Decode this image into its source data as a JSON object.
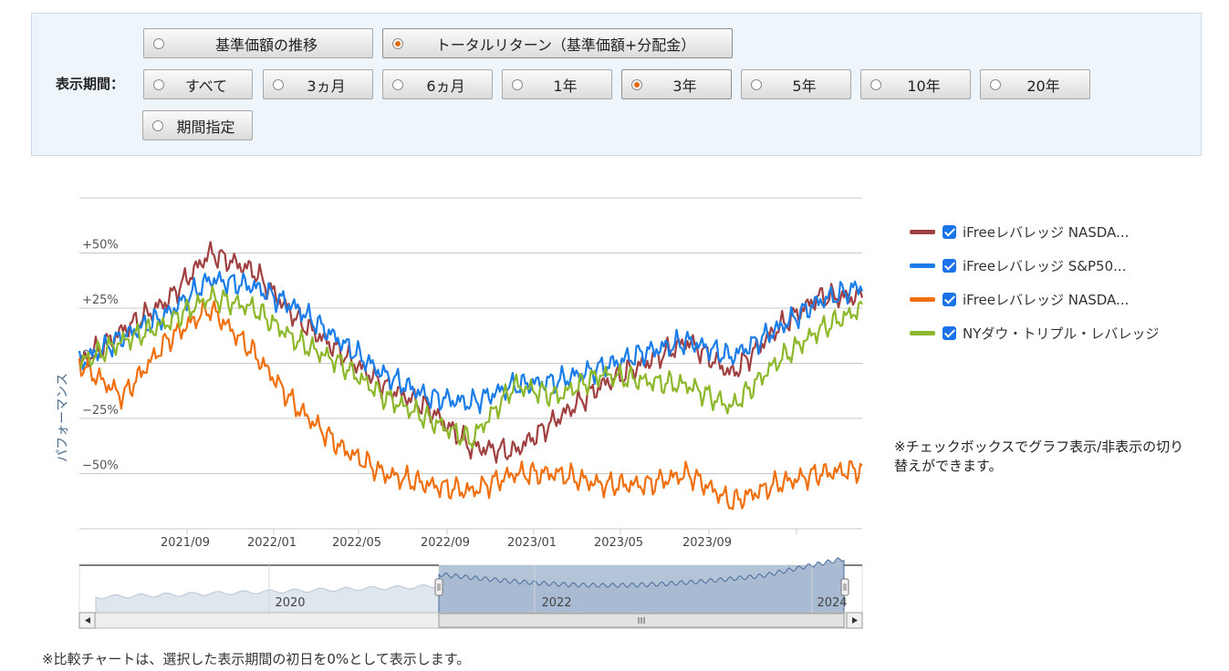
{
  "period_selector": {
    "label": "表示期間：",
    "options": [
      {
        "label": "基準価額の推移",
        "selected": false
      },
      {
        "label": "トータルリターン（基準価額+分配金）",
        "selected": true
      },
      {
        "label": "すべて",
        "selected": false
      },
      {
        "label": "3ヵ月",
        "selected": false
      },
      {
        "label": "6ヵ月",
        "selected": false
      },
      {
        "label": "1年",
        "selected": false
      },
      {
        "label": "3年",
        "selected": true
      },
      {
        "label": "5年",
        "selected": false
      },
      {
        "label": "10年",
        "selected": false
      },
      {
        "label": "20年",
        "selected": false
      },
      {
        "label": "期間指定",
        "selected": false
      }
    ]
  },
  "legend": [
    {
      "label": "iFreeレバレッジ NASDA...",
      "color": "#a04040",
      "checked": true
    },
    {
      "label": "iFreeレバレッジ S&P50...",
      "color": "#1a7de8",
      "checked": true
    },
    {
      "label": "iFreeレバレッジ NASDA...",
      "color": "#f07010",
      "checked": true
    },
    {
      "label": "NYダウ・トリプル・レバレッジ",
      "color": "#8db82b",
      "checked": true
    }
  ],
  "note_right": "※チェックボックスでグラフ表示/非表示の切り替えができます。",
  "note_bottom": "※比較チャートは、選択した表示期間の初日を0%として表示します。",
  "chart_data": {
    "type": "line",
    "ylabel": "パフォーマンス",
    "y_ticks": [
      "+50%",
      "+25%",
      "0%",
      "−25%",
      "−50%"
    ],
    "y_tick_values": [
      50,
      25,
      0,
      -25,
      -50
    ],
    "ylim": [
      -75,
      75
    ],
    "x_ticks": [
      "2021/09",
      "2022/01",
      "2022/05",
      "2022/09",
      "2023/01",
      "2023/05",
      "2023/09"
    ],
    "x": [
      "2021/06",
      "2021/08",
      "2021/10",
      "2021/12",
      "2022/01",
      "2022/03",
      "2022/05",
      "2022/07",
      "2022/09",
      "2022/10",
      "2022/12",
      "2023/02",
      "2023/04",
      "2023/06",
      "2023/08",
      "2023/10",
      "2023/12",
      "2024/02",
      "2024/04"
    ],
    "series": [
      {
        "name": "iFreeレバレッジ NASDA...",
        "color": "#a04040",
        "values": [
          0,
          15,
          28,
          50,
          42,
          20,
          5,
          -10,
          -20,
          -38,
          -40,
          -25,
          -10,
          0,
          10,
          -5,
          15,
          30,
          30
        ]
      },
      {
        "name": "iFreeレバレッジ S&P50...",
        "color": "#1a7de8",
        "values": [
          0,
          12,
          22,
          38,
          35,
          25,
          10,
          -5,
          -15,
          -18,
          -10,
          -8,
          -2,
          5,
          10,
          3,
          15,
          28,
          35
        ]
      },
      {
        "name": "iFreeレバレッジ NASDA...",
        "color": "#f07010",
        "values": [
          0,
          -15,
          10,
          25,
          5,
          -20,
          -38,
          -50,
          -55,
          -58,
          -50,
          -50,
          -55,
          -55,
          -50,
          -63,
          -55,
          -50,
          -48
        ]
      },
      {
        "name": "NYダウ・トリプル・レバレッジ",
        "color": "#8db82b",
        "values": [
          0,
          10,
          18,
          30,
          25,
          10,
          0,
          -15,
          -25,
          -35,
          -10,
          -15,
          -5,
          -8,
          -10,
          -20,
          0,
          15,
          25
        ]
      }
    ],
    "navigator": {
      "labels": [
        "2020",
        "2022",
        "2024"
      ]
    }
  }
}
